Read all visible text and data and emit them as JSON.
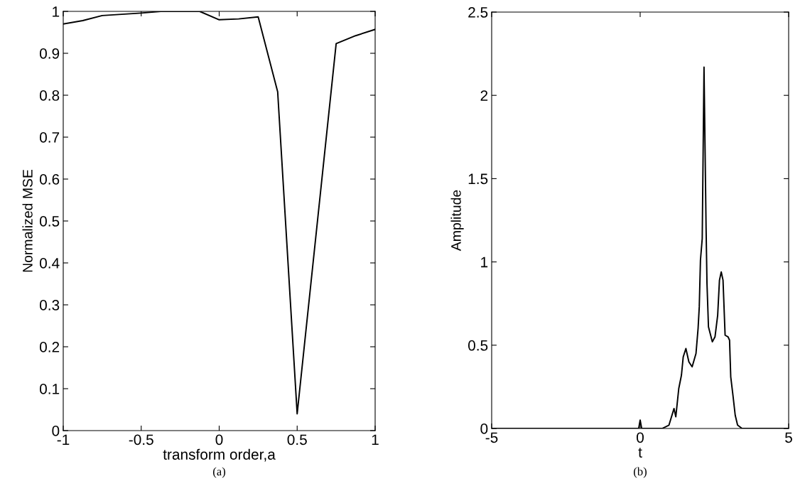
{
  "chart_data": [
    {
      "type": "line",
      "xlabel": "transform order,a",
      "ylabel": "Normalized MSE",
      "annotations": [
        "(a)"
      ],
      "x": [
        -1,
        -0.875,
        -0.75,
        -0.625,
        -0.5,
        -0.375,
        -0.25,
        -0.125,
        0,
        0.125,
        0.25,
        0.375,
        0.5,
        0.75,
        0.875,
        1
      ],
      "series": [
        {
          "color": "#000000",
          "values": [
            0.97,
            0.978,
            0.99,
            0.993,
            0.996,
            1.0,
            1.0,
            1.0,
            0.98,
            0.982,
            0.987,
            0.808,
            0.04,
            0.923,
            0.942,
            0.957
          ]
        }
      ],
      "xlim": [
        -1,
        1
      ],
      "ylim": [
        0,
        1
      ],
      "xticks": [
        -1,
        -0.5,
        0,
        0.5,
        1
      ],
      "yticks": [
        0,
        0.1,
        0.2,
        0.3,
        0.4,
        0.5,
        0.6,
        0.7,
        0.8,
        0.9,
        1
      ],
      "grid": false,
      "legend": false,
      "marker": "none",
      "line_style": "solid"
    },
    {
      "type": "line",
      "xlabel": "t",
      "ylabel": "Amplitude",
      "annotations": [
        "(b)"
      ],
      "x": [
        -5,
        -0.05,
        0,
        0.05,
        0.74,
        0.97,
        1.14,
        1.2,
        1.3,
        1.39,
        1.45,
        1.54,
        1.64,
        1.75,
        1.88,
        1.95,
        1.99,
        2.03,
        2.09,
        2.15,
        2.22,
        2.25,
        2.3,
        2.43,
        2.52,
        2.61,
        2.67,
        2.73,
        2.79,
        2.86,
        2.96,
        3.01,
        3.05,
        3.13,
        3.2,
        3.28,
        3.43,
        5
      ],
      "series": [
        {
          "color": "#000000",
          "values": [
            0,
            0,
            0.05,
            0,
            0,
            0.02,
            0.12,
            0.07,
            0.24,
            0.32,
            0.43,
            0.48,
            0.4,
            0.37,
            0.45,
            0.6,
            0.73,
            1.01,
            1.14,
            2.17,
            1.2,
            0.87,
            0.61,
            0.52,
            0.55,
            0.68,
            0.89,
            0.94,
            0.89,
            0.56,
            0.55,
            0.53,
            0.31,
            0.19,
            0.08,
            0.02,
            0,
            0
          ]
        }
      ],
      "xlim": [
        -5,
        5
      ],
      "ylim": [
        0,
        2.5
      ],
      "xticks": [
        -5,
        0,
        5
      ],
      "yticks": [
        0,
        0.5,
        1,
        1.5,
        2,
        2.5
      ],
      "grid": false,
      "legend": false,
      "marker": "none",
      "line_style": "solid"
    }
  ]
}
